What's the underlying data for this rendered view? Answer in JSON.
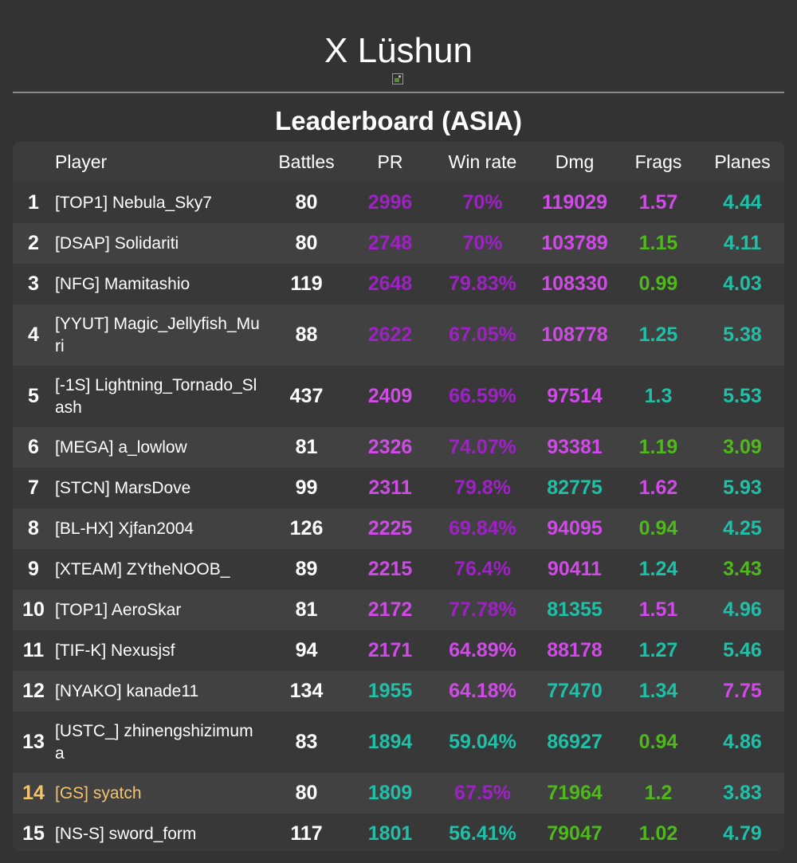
{
  "ship": {
    "name": "X Lüshun"
  },
  "leaderboard": {
    "title": "Leaderboard (ASIA)",
    "headers": {
      "rank": "",
      "player": "Player",
      "battles": "Battles",
      "pr": "PR",
      "winrate": "Win rate",
      "dmg": "Dmg",
      "frags": "Frags",
      "planes": "Planes"
    },
    "rows": [
      {
        "rank": "1",
        "player": "[TOP1] Nebula_Sky7",
        "battles": "80",
        "pr": "2996",
        "winrate": "70%",
        "dmg": "119029",
        "frags": "1.57",
        "planes": "4.44"
      },
      {
        "rank": "2",
        "player": "[DSAP] Solidariti",
        "battles": "80",
        "pr": "2748",
        "winrate": "70%",
        "dmg": "103789",
        "frags": "1.15",
        "planes": "4.11"
      },
      {
        "rank": "3",
        "player": "[NFG] Mamitashio",
        "battles": "119",
        "pr": "2648",
        "winrate": "79.83%",
        "dmg": "108330",
        "frags": "0.99",
        "planes": "4.03"
      },
      {
        "rank": "4",
        "player": "[YYUT] Magic_Jellyfish_Muri",
        "battles": "88",
        "pr": "2622",
        "winrate": "67.05%",
        "dmg": "108778",
        "frags": "1.25",
        "planes": "5.38"
      },
      {
        "rank": "5",
        "player": "[-1S] Lightning_Tornado_Slash",
        "battles": "437",
        "pr": "2409",
        "winrate": "66.59%",
        "dmg": "97514",
        "frags": "1.3",
        "planes": "5.53"
      },
      {
        "rank": "6",
        "player": "[MEGA] a_lowlow",
        "battles": "81",
        "pr": "2326",
        "winrate": "74.07%",
        "dmg": "93381",
        "frags": "1.19",
        "planes": "3.09"
      },
      {
        "rank": "7",
        "player": "[STCN] MarsDove",
        "battles": "99",
        "pr": "2311",
        "winrate": "79.8%",
        "dmg": "82775",
        "frags": "1.62",
        "planes": "5.93"
      },
      {
        "rank": "8",
        "player": "[BL-HX] Xjfan2004",
        "battles": "126",
        "pr": "2225",
        "winrate": "69.84%",
        "dmg": "94095",
        "frags": "0.94",
        "planes": "4.25"
      },
      {
        "rank": "9",
        "player": "[XTEAM] ZYtheNOOB_",
        "battles": "89",
        "pr": "2215",
        "winrate": "76.4%",
        "dmg": "90411",
        "frags": "1.24",
        "planes": "3.43"
      },
      {
        "rank": "10",
        "player": "[TOP1] AeroSkar",
        "battles": "81",
        "pr": "2172",
        "winrate": "77.78%",
        "dmg": "81355",
        "frags": "1.51",
        "planes": "4.96"
      },
      {
        "rank": "11",
        "player": "[TIF-K] Nexusjsf",
        "battles": "94",
        "pr": "2171",
        "winrate": "64.89%",
        "dmg": "88178",
        "frags": "1.27",
        "planes": "5.46"
      },
      {
        "rank": "12",
        "player": "[NYAKO] kanade11",
        "battles": "134",
        "pr": "1955",
        "winrate": "64.18%",
        "dmg": "77470",
        "frags": "1.34",
        "planes": "7.75"
      },
      {
        "rank": "13",
        "player": "[USTC_] zhinengshizimuma",
        "battles": "83",
        "pr": "1894",
        "winrate": "59.04%",
        "dmg": "86927",
        "frags": "0.94",
        "planes": "4.86"
      },
      {
        "rank": "14",
        "player": "[GS] syatch",
        "battles": "80",
        "pr": "1809",
        "winrate": "67.5%",
        "dmg": "71964",
        "frags": "1.2",
        "planes": "3.83"
      },
      {
        "rank": "15",
        "player": "[NS-S] sword_form",
        "battles": "117",
        "pr": "1801",
        "winrate": "56.41%",
        "dmg": "79047",
        "frags": "1.02",
        "planes": "4.79"
      }
    ]
  },
  "colors": {
    "background": "#333333",
    "highlight_player": "#f3c46b",
    "purple": "#a020c8",
    "magenta": "#d04ae8",
    "teal": "#1ec0a8",
    "green": "#4fb81a"
  }
}
